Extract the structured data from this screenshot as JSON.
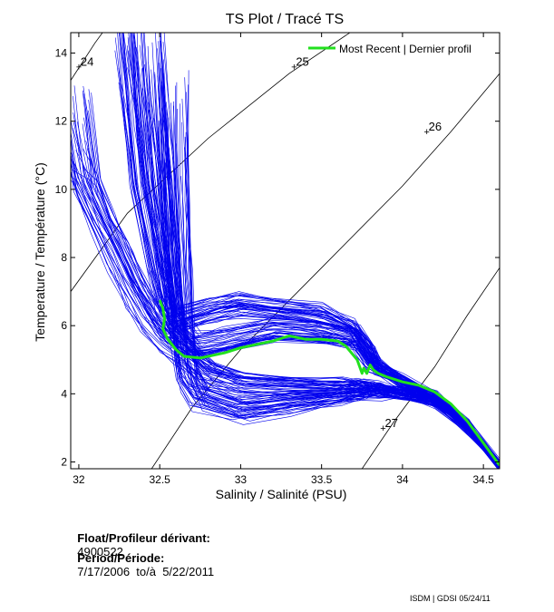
{
  "chart_data": {
    "type": "line",
    "title": "TS Plot / Tracé TS",
    "xlabel": "Salinity / Salinité (PSU)",
    "ylabel": "Temperature / Température (°C)",
    "xlim": [
      31.95,
      34.6
    ],
    "ylim": [
      1.8,
      14.6
    ],
    "xticks": [
      32,
      32.5,
      33,
      33.5,
      34,
      34.5
    ],
    "xtick_labels": [
      "32",
      "32.5",
      "33",
      "33.5",
      "34",
      "34.5"
    ],
    "yticks": [
      2,
      4,
      6,
      8,
      10,
      12,
      14
    ],
    "ytick_labels": [
      "2",
      "4",
      "6",
      "8",
      "10",
      "12",
      "14"
    ],
    "grid": false,
    "legend_position": "top-right",
    "series": [
      {
        "name": "Most Recent | Dernier profil",
        "color": "#22e01e",
        "x": [
          32.5,
          32.52,
          32.53,
          32.52,
          32.55,
          32.6,
          32.65,
          32.75,
          32.9,
          33.0,
          33.1,
          33.2,
          33.3,
          33.4,
          33.5,
          33.6,
          33.65,
          33.72,
          33.75,
          33.76,
          33.78,
          33.8,
          33.82,
          33.85,
          33.9,
          34.0,
          34.1,
          34.2,
          34.3,
          34.4,
          34.5,
          34.6
        ],
        "y": [
          6.75,
          6.5,
          6.2,
          5.9,
          5.6,
          5.3,
          5.1,
          5.05,
          5.2,
          5.35,
          5.45,
          5.55,
          5.7,
          5.6,
          5.6,
          5.55,
          5.4,
          5.0,
          4.6,
          4.75,
          4.6,
          4.85,
          4.7,
          4.6,
          4.5,
          4.35,
          4.25,
          4.05,
          3.7,
          3.2,
          2.55,
          1.9
        ]
      }
    ],
    "background_profiles": {
      "color": "#0000ee",
      "count_note": "many",
      "shape_families": [
        {
          "x": [
            31.98,
            32.05,
            32.15,
            32.25,
            32.35,
            32.45,
            32.55,
            32.65,
            32.8,
            33.0,
            33.3,
            33.6,
            33.75,
            33.85,
            34.0,
            34.2,
            34.4,
            34.6
          ],
          "y": [
            11.0,
            10.1,
            9.0,
            8.0,
            7.0,
            6.2,
            5.6,
            5.2,
            4.6,
            4.3,
            4.2,
            4.2,
            4.2,
            4.15,
            4.0,
            3.8,
            3.0,
            1.9
          ]
        },
        {
          "x": [
            32.3,
            32.35,
            32.4,
            32.5,
            32.55,
            32.6,
            32.8,
            33.0,
            33.5,
            33.7,
            33.8,
            33.85,
            34.0,
            34.2,
            34.4,
            34.6
          ],
          "y": [
            14.0,
            12.0,
            10.0,
            7.5,
            6.5,
            6.1,
            6.4,
            6.6,
            6.3,
            5.9,
            5.3,
            4.8,
            4.4,
            3.9,
            3.1,
            1.9
          ]
        },
        {
          "x": [
            32.58,
            32.6,
            32.62,
            32.65,
            32.68,
            32.75,
            33.0,
            33.3,
            33.6,
            33.75,
            33.85,
            34.0,
            34.2,
            34.4,
            34.6
          ],
          "y": [
            11.5,
            9.5,
            7.5,
            5.5,
            4.5,
            3.9,
            3.5,
            3.7,
            3.9,
            4.0,
            4.05,
            4.0,
            3.75,
            3.0,
            1.9
          ]
        },
        {
          "x": [
            32.45,
            32.5,
            32.55,
            32.6,
            32.7,
            32.9,
            33.2,
            33.5,
            33.7,
            33.8,
            34.0,
            34.2,
            34.4,
            34.6
          ],
          "y": [
            13.0,
            10.5,
            8.0,
            6.0,
            5.4,
            5.6,
            5.9,
            5.8,
            5.6,
            4.9,
            4.3,
            3.9,
            3.1,
            1.9
          ]
        }
      ]
    },
    "density_contours": [
      {
        "label": "24",
        "label_position": "start"
      },
      {
        "label": "25",
        "label_position": "middle"
      },
      {
        "label": "26",
        "label_position": "upper"
      },
      {
        "label": "27",
        "label_position": "lower"
      }
    ]
  },
  "info": {
    "float_label": "Float/Profileur dérivant:",
    "float_value": "4900522",
    "period_label": "Period/Période:",
    "period_value": "7/17/2006  to/à  5/22/2011"
  },
  "credit": "ISDM | GDSI  05/24/11"
}
